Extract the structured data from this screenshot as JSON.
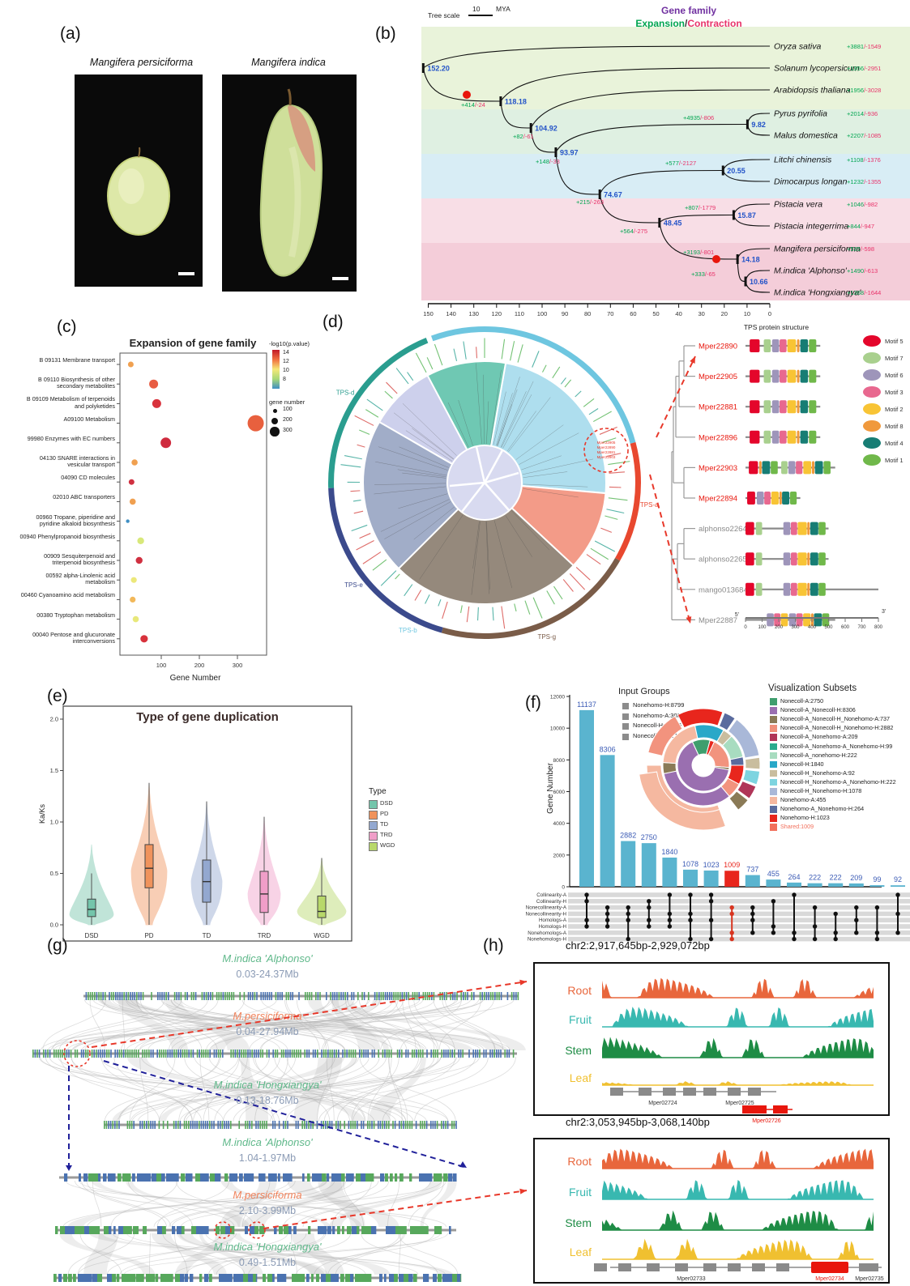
{
  "panels": {
    "a": "(a)",
    "b": "(b)",
    "c": "(c)",
    "d": "(d)",
    "e": "(e)",
    "f": "(f)",
    "g": "(g)",
    "h": "(h)"
  },
  "panel_a": {
    "left_title": "Mangifera persiciforma",
    "right_title": "Mangifera indica"
  },
  "chart_data": [
    {
      "id": "b",
      "type": "tree",
      "header_title": "Gene family",
      "header_expansion": "Expansion",
      "header_slash": "/",
      "header_contraction": "Contraction",
      "tree_scale_label": "Tree scale",
      "tree_scale_value": "10",
      "tree_scale_unit": "MYA",
      "species": [
        {
          "name": "Oryza sativa",
          "exp": "+3881",
          "con": "-1549"
        },
        {
          "name": "Solanum lycopersicum",
          "exp": "+1956",
          "con": "-2951"
        },
        {
          "name": "Arabidopsis thaliana",
          "exp": "+1956",
          "con": "-3028"
        },
        {
          "name": "Pyrus pyrifolia",
          "exp": "+2014",
          "con": "-936"
        },
        {
          "name": "Malus domestica",
          "exp": "+2207",
          "con": "-1085"
        },
        {
          "name": "Litchi chinensis",
          "exp": "+1108",
          "con": "-1376"
        },
        {
          "name": "Dimocarpus longan",
          "exp": "+1232",
          "con": "-1355"
        },
        {
          "name": "Pistacia vera",
          "exp": "+1046",
          "con": "-982"
        },
        {
          "name": "Pistacia integerrima",
          "exp": "+844",
          "con": "-947"
        },
        {
          "name": "Mangifera persiciforma",
          "exp": "+535",
          "con": "-598"
        },
        {
          "name": "M.indica 'Alphonso'",
          "exp": "+1490",
          "con": "-613"
        },
        {
          "name": "M.indica 'Hongxiangya'",
          "exp": "+1368",
          "con": "-1644"
        }
      ],
      "node_ages": [
        "152.20",
        "118.18",
        "104.92",
        "93.97",
        "74.67",
        "48.45",
        "9.82",
        "20.55",
        "15.87",
        "14.18",
        "10.66"
      ],
      "branch_events": [
        {
          "exp": "+414",
          "con": "-24"
        },
        {
          "exp": "+82",
          "con": "-61"
        },
        {
          "exp": "+148",
          "con": "-33"
        },
        {
          "exp": "+4935",
          "con": "-806"
        },
        {
          "exp": "+577",
          "con": "-2127"
        },
        {
          "exp": "+215",
          "con": "-263"
        },
        {
          "exp": "+807",
          "con": "-1779"
        },
        {
          "exp": "+564",
          "con": "-275"
        },
        {
          "exp": "+3193",
          "con": "-801"
        },
        {
          "exp": "+333",
          "con": "-65"
        }
      ],
      "axis_ticks": [
        150,
        140,
        130,
        120,
        110,
        100,
        90,
        80,
        70,
        60,
        50,
        40,
        30,
        20,
        10,
        0
      ],
      "colors": {
        "expansion": "#00a550",
        "contraction": "#e8336a",
        "node": "#2353c8",
        "header": "#7030a0"
      }
    },
    {
      "id": "c",
      "type": "scatter",
      "title": "Expansion of gene family",
      "xlabel": "Gene Number",
      "x_ticks": [
        100,
        200,
        300
      ],
      "legend_color_title": "-log10(p.value)",
      "legend_color_ticks": [
        14,
        12,
        10,
        8
      ],
      "legend_size_title": "gene number",
      "legend_sizes": [
        100,
        200,
        300
      ],
      "points": [
        {
          "label": "B  09131 Membrane transport",
          "value": 20,
          "color": "#f0a050",
          "r": 3.5
        },
        {
          "label": "B  09110 Biosynthesis of other secondary metabolites",
          "value": 80,
          "color": "#e85c42",
          "r": 5.5
        },
        {
          "label": "B  09109 Metabolism of terpenoids and polyketides",
          "value": 88,
          "color": "#d8323c",
          "r": 5.5
        },
        {
          "label": "A09100 Metabolism",
          "value": 348,
          "color": "#e8603e",
          "r": 10
        },
        {
          "label": "99980 Enzymes with EC numbers",
          "value": 112,
          "color": "#cf2b3e",
          "r": 6.5
        },
        {
          "label": "04130 SNARE interactions in vesicular transport",
          "value": 30,
          "color": "#f0a050",
          "r": 3.8
        },
        {
          "label": "04090 CD molecules",
          "value": 22,
          "color": "#d03040",
          "r": 3.5
        },
        {
          "label": "02010 ABC transporters",
          "value": 25,
          "color": "#f0a050",
          "r": 3.8
        },
        {
          "label": "00960 Tropane, piperidine and pyridine alkaloid biosynthesis",
          "value": 12,
          "color": "#3f8fc4",
          "r": 2.2
        },
        {
          "label": "00940 Phenylpropanoid biosynthesis",
          "value": 46,
          "color": "#d8e87a",
          "r": 4.2
        },
        {
          "label": "00909 Sesquiterpenoid and triterpenoid biosynthesis",
          "value": 42,
          "color": "#d03040",
          "r": 4.2
        },
        {
          "label": "00592 alpha-Linolenic acid metabolism",
          "value": 28,
          "color": "#ece87a",
          "r": 3.6
        },
        {
          "label": "00460 Cyanoamino acid metabolism",
          "value": 25,
          "color": "#f2b85a",
          "r": 3.6
        },
        {
          "label": "00380 Tryptophan metabolism",
          "value": 33,
          "color": "#e8e87a",
          "r": 3.8
        },
        {
          "label": "00040 Pentose and glucuronate interconversions",
          "value": 55,
          "color": "#d8323c",
          "r": 4.6
        }
      ]
    },
    {
      "id": "d",
      "type": "tree-circular",
      "group_labels": [
        "TPS-a",
        "TPS-b",
        "TPS-d",
        "TPS-e",
        "TPS-g"
      ],
      "structure_title": "TPS protein structure",
      "motif_legend": [
        {
          "label": "Motif 5",
          "color": "#e4062b"
        },
        {
          "label": "Motif 7",
          "color": "#a9d08e"
        },
        {
          "label": "Motif 6",
          "color": "#9e95ba"
        },
        {
          "label": "Motif 3",
          "color": "#e8688f"
        },
        {
          "label": "Motif 2",
          "color": "#f8c435"
        },
        {
          "label": "Motif 8",
          "color": "#f0993c"
        },
        {
          "label": "Motif 4",
          "color": "#177d74"
        },
        {
          "label": "Motif 1",
          "color": "#70b84a"
        }
      ],
      "genes": [
        {
          "name": "Mper22890",
          "highlight": true
        },
        {
          "name": "Mper22905",
          "highlight": true
        },
        {
          "name": "Mper22881",
          "highlight": true
        },
        {
          "name": "Mper22896",
          "highlight": true
        },
        {
          "name": "Mper22903",
          "highlight": true
        },
        {
          "name": "Mper22894",
          "highlight": true
        },
        {
          "name": "alphonso22647",
          "highlight": false
        },
        {
          "name": "alphonso22652",
          "highlight": false
        },
        {
          "name": "mango013684",
          "highlight": false
        },
        {
          "name": "Mper22887",
          "highlight": false
        }
      ],
      "axis": {
        "start_label": "5'",
        "end_label": "3'",
        "ticks": [
          0,
          100,
          200,
          300,
          400,
          500,
          600,
          700,
          800
        ]
      }
    },
    {
      "id": "e",
      "type": "violin",
      "title": "Type of gene duplication",
      "ylabel": "Ka/Ks",
      "y_ticks": [
        "0.0",
        "0.5",
        "1.0",
        "1.5",
        "2.0"
      ],
      "legend_title": "Type",
      "series": [
        {
          "name": "DSD",
          "color": "#74c5ab",
          "median": 0.15,
          "q1": 0.08,
          "q3": 0.25,
          "whisker": 0.5,
          "max": 0.78,
          "mode": 0.1,
          "halfwidth": 27
        },
        {
          "name": "PD",
          "color": "#f0935c",
          "median": 0.55,
          "q1": 0.36,
          "q3": 0.78,
          "whisker": 1.38,
          "max": 1.38,
          "mode": 0.52,
          "halfwidth": 22
        },
        {
          "name": "TD",
          "color": "#93a8d0",
          "median": 0.42,
          "q1": 0.22,
          "q3": 0.63,
          "whisker": 1.2,
          "max": 1.2,
          "mode": 0.42,
          "halfwidth": 19
        },
        {
          "name": "TRD",
          "color": "#f09ec8",
          "median": 0.3,
          "q1": 0.12,
          "q3": 0.52,
          "whisker": 1.05,
          "max": 1.05,
          "mode": 0.3,
          "halfwidth": 20
        },
        {
          "name": "WGD",
          "color": "#b8d86a",
          "median": 0.13,
          "q1": 0.07,
          "q3": 0.28,
          "whisker": 0.65,
          "max": 0.65,
          "mode": 0.13,
          "halfwidth": 30
        }
      ]
    },
    {
      "id": "f",
      "type": "upset",
      "ylabel": "Gene Number",
      "y_ticks": [
        0,
        2000,
        4000,
        6000,
        8000,
        10000,
        12000
      ],
      "input_groups_title": "Input Groups",
      "input_groups": [
        "Nonehomo-H:8799",
        "Nonehomo-A:3087",
        "Nonecoll-H:16166",
        "Nonecoll-A:16214"
      ],
      "subsets_title": "Visualization Subsets",
      "subsets": [
        {
          "label": "Nonecoll-A:2750",
          "color": "#3f9e6e"
        },
        {
          "label": "Nonecoll-A_Nonecoll-H:8306",
          "color": "#9a6fb0"
        },
        {
          "label": "Nonecoll-A_Nonecoll-H_Nonehomo-A:737",
          "color": "#8a7a56"
        },
        {
          "label": "Nonecoll-A_Nonecoll-H_Nonehomo-H:2882",
          "color": "#f0907a"
        },
        {
          "label": "Nonecoll-A_Nonehomo-A:209",
          "color": "#b03558"
        },
        {
          "label": "Nonecoll-A_Nonehomo-A_Nonehomo-H:99",
          "color": "#2aab8e"
        },
        {
          "label": "Nonecoll-A_nonehomo-H:222",
          "color": "#a8dcc0"
        },
        {
          "label": "Nonecoll-H:1840",
          "color": "#29a8c8"
        },
        {
          "label": "Nonecoll-H_Nonehomo-A:92",
          "color": "#c9bd9e"
        },
        {
          "label": "Nonecoll-H_Nonehomo-A_Nonehomo-H:222",
          "color": "#7dd4e0"
        },
        {
          "label": "Nonecoll-H_Nonehomo-H:1078",
          "color": "#a9b8d8"
        },
        {
          "label": "Nonehomo-A:455",
          "color": "#f5b8a0"
        },
        {
          "label": "Nonehomo-A_Nonehomo-H:264",
          "color": "#5a6b9e"
        },
        {
          "label": "Nonehomo-H:1023",
          "color": "#e8261d"
        },
        {
          "label": "Shared:1009",
          "color": "#f2705c",
          "text_red": true
        }
      ],
      "bars": [
        {
          "value": 11137,
          "red": false,
          "rows": [
            1,
            2,
            5,
            6
          ]
        },
        {
          "value": 8306,
          "red": false,
          "rows": [
            3,
            4,
            5,
            6
          ]
        },
        {
          "value": 2882,
          "red": false,
          "rows": [
            3,
            4,
            5,
            8
          ]
        },
        {
          "value": 2750,
          "red": false,
          "rows": [
            2,
            3,
            5,
            6
          ]
        },
        {
          "value": 1840,
          "red": false,
          "rows": [
            1,
            4,
            5,
            6
          ]
        },
        {
          "value": 1078,
          "red": false,
          "rows": [
            1,
            4,
            5,
            8
          ]
        },
        {
          "value": 1023,
          "red": false,
          "rows": [
            1,
            2,
            5,
            8
          ]
        },
        {
          "value": 1009,
          "red": true,
          "rows": [
            3,
            4,
            7,
            8
          ]
        },
        {
          "value": 737,
          "red": false,
          "rows": [
            3,
            4,
            5,
            7
          ]
        },
        {
          "value": 455,
          "red": false,
          "rows": [
            2,
            6,
            7
          ]
        },
        {
          "value": 264,
          "red": false,
          "rows": [
            1,
            7,
            8
          ]
        },
        {
          "value": 222,
          "red": false,
          "rows": [
            3,
            6,
            8
          ]
        },
        {
          "value": 222,
          "red": false,
          "rows": [
            4,
            7,
            8
          ]
        },
        {
          "value": 209,
          "red": false,
          "rows": [
            3,
            5,
            7
          ]
        },
        {
          "value": 99,
          "red": false,
          "rows": [
            3,
            7,
            8
          ]
        },
        {
          "value": 92,
          "red": false,
          "rows": [
            1,
            4,
            7
          ]
        }
      ],
      "matrix_rows": [
        "Collinearity-A",
        "Collinearity-H",
        "Nonecollinearity-A",
        "Nonecollinearity-H",
        "Homologs-A",
        "Homologs-H",
        "Nonehomologs-A",
        "Nonehomologs-H"
      ]
    },
    {
      "id": "g",
      "type": "synteny",
      "tracks": [
        {
          "species": "M.indica 'Alphonso'",
          "range": "0.03-24.37Mb",
          "species_color": "#5fb88a"
        },
        {
          "species": "M.persiciforma",
          "range": "0.04-27.94Mb",
          "species_color": "#f0835c"
        },
        {
          "species": "M.indica 'Hongxiangya'",
          "range": "0.13-18.76Mb",
          "species_color": "#5fb88a"
        },
        {
          "species": "M.indica 'Alphonso'",
          "range": "1.04-1.97Mb",
          "species_color": "#5fb88a"
        },
        {
          "species": "M.persiciforma",
          "range": "2.10-3.99Mb",
          "species_color": "#f0835c"
        },
        {
          "species": "M.indica 'Hongxiangya'",
          "range": "0.49-1.51Mb",
          "species_color": "#5fb88a"
        }
      ],
      "range_color": "#8b9bb5"
    },
    {
      "id": "h",
      "type": "coverage",
      "regions": [
        {
          "title": "chr2:2,917,645bp-2,929,072bp",
          "tracks": [
            {
              "name": "Root",
              "color": "#e8663c"
            },
            {
              "name": "Fruit",
              "color": "#38b8b0"
            },
            {
              "name": "Stem",
              "color": "#1e8c45"
            },
            {
              "name": "Leaf",
              "color": "#f0c030"
            }
          ],
          "genes": [
            {
              "name": "Mper02724",
              "highlight": false
            },
            {
              "name": "Mper02725",
              "highlight": false
            },
            {
              "name": "Mper02726",
              "highlight": true
            }
          ]
        },
        {
          "title": "chr2:3,053,945bp-3,068,140bp",
          "tracks": [
            {
              "name": "Root",
              "color": "#e8663c"
            },
            {
              "name": "Fruit",
              "color": "#38b8b0"
            },
            {
              "name": "Stem",
              "color": "#1e8c45"
            },
            {
              "name": "Leaf",
              "color": "#f0c030"
            }
          ],
          "genes": [
            {
              "name": "Mper02733",
              "highlight": false
            },
            {
              "name": "Mper02734",
              "highlight": true
            },
            {
              "name": "Mper02735",
              "highlight": false
            }
          ]
        }
      ]
    }
  ]
}
